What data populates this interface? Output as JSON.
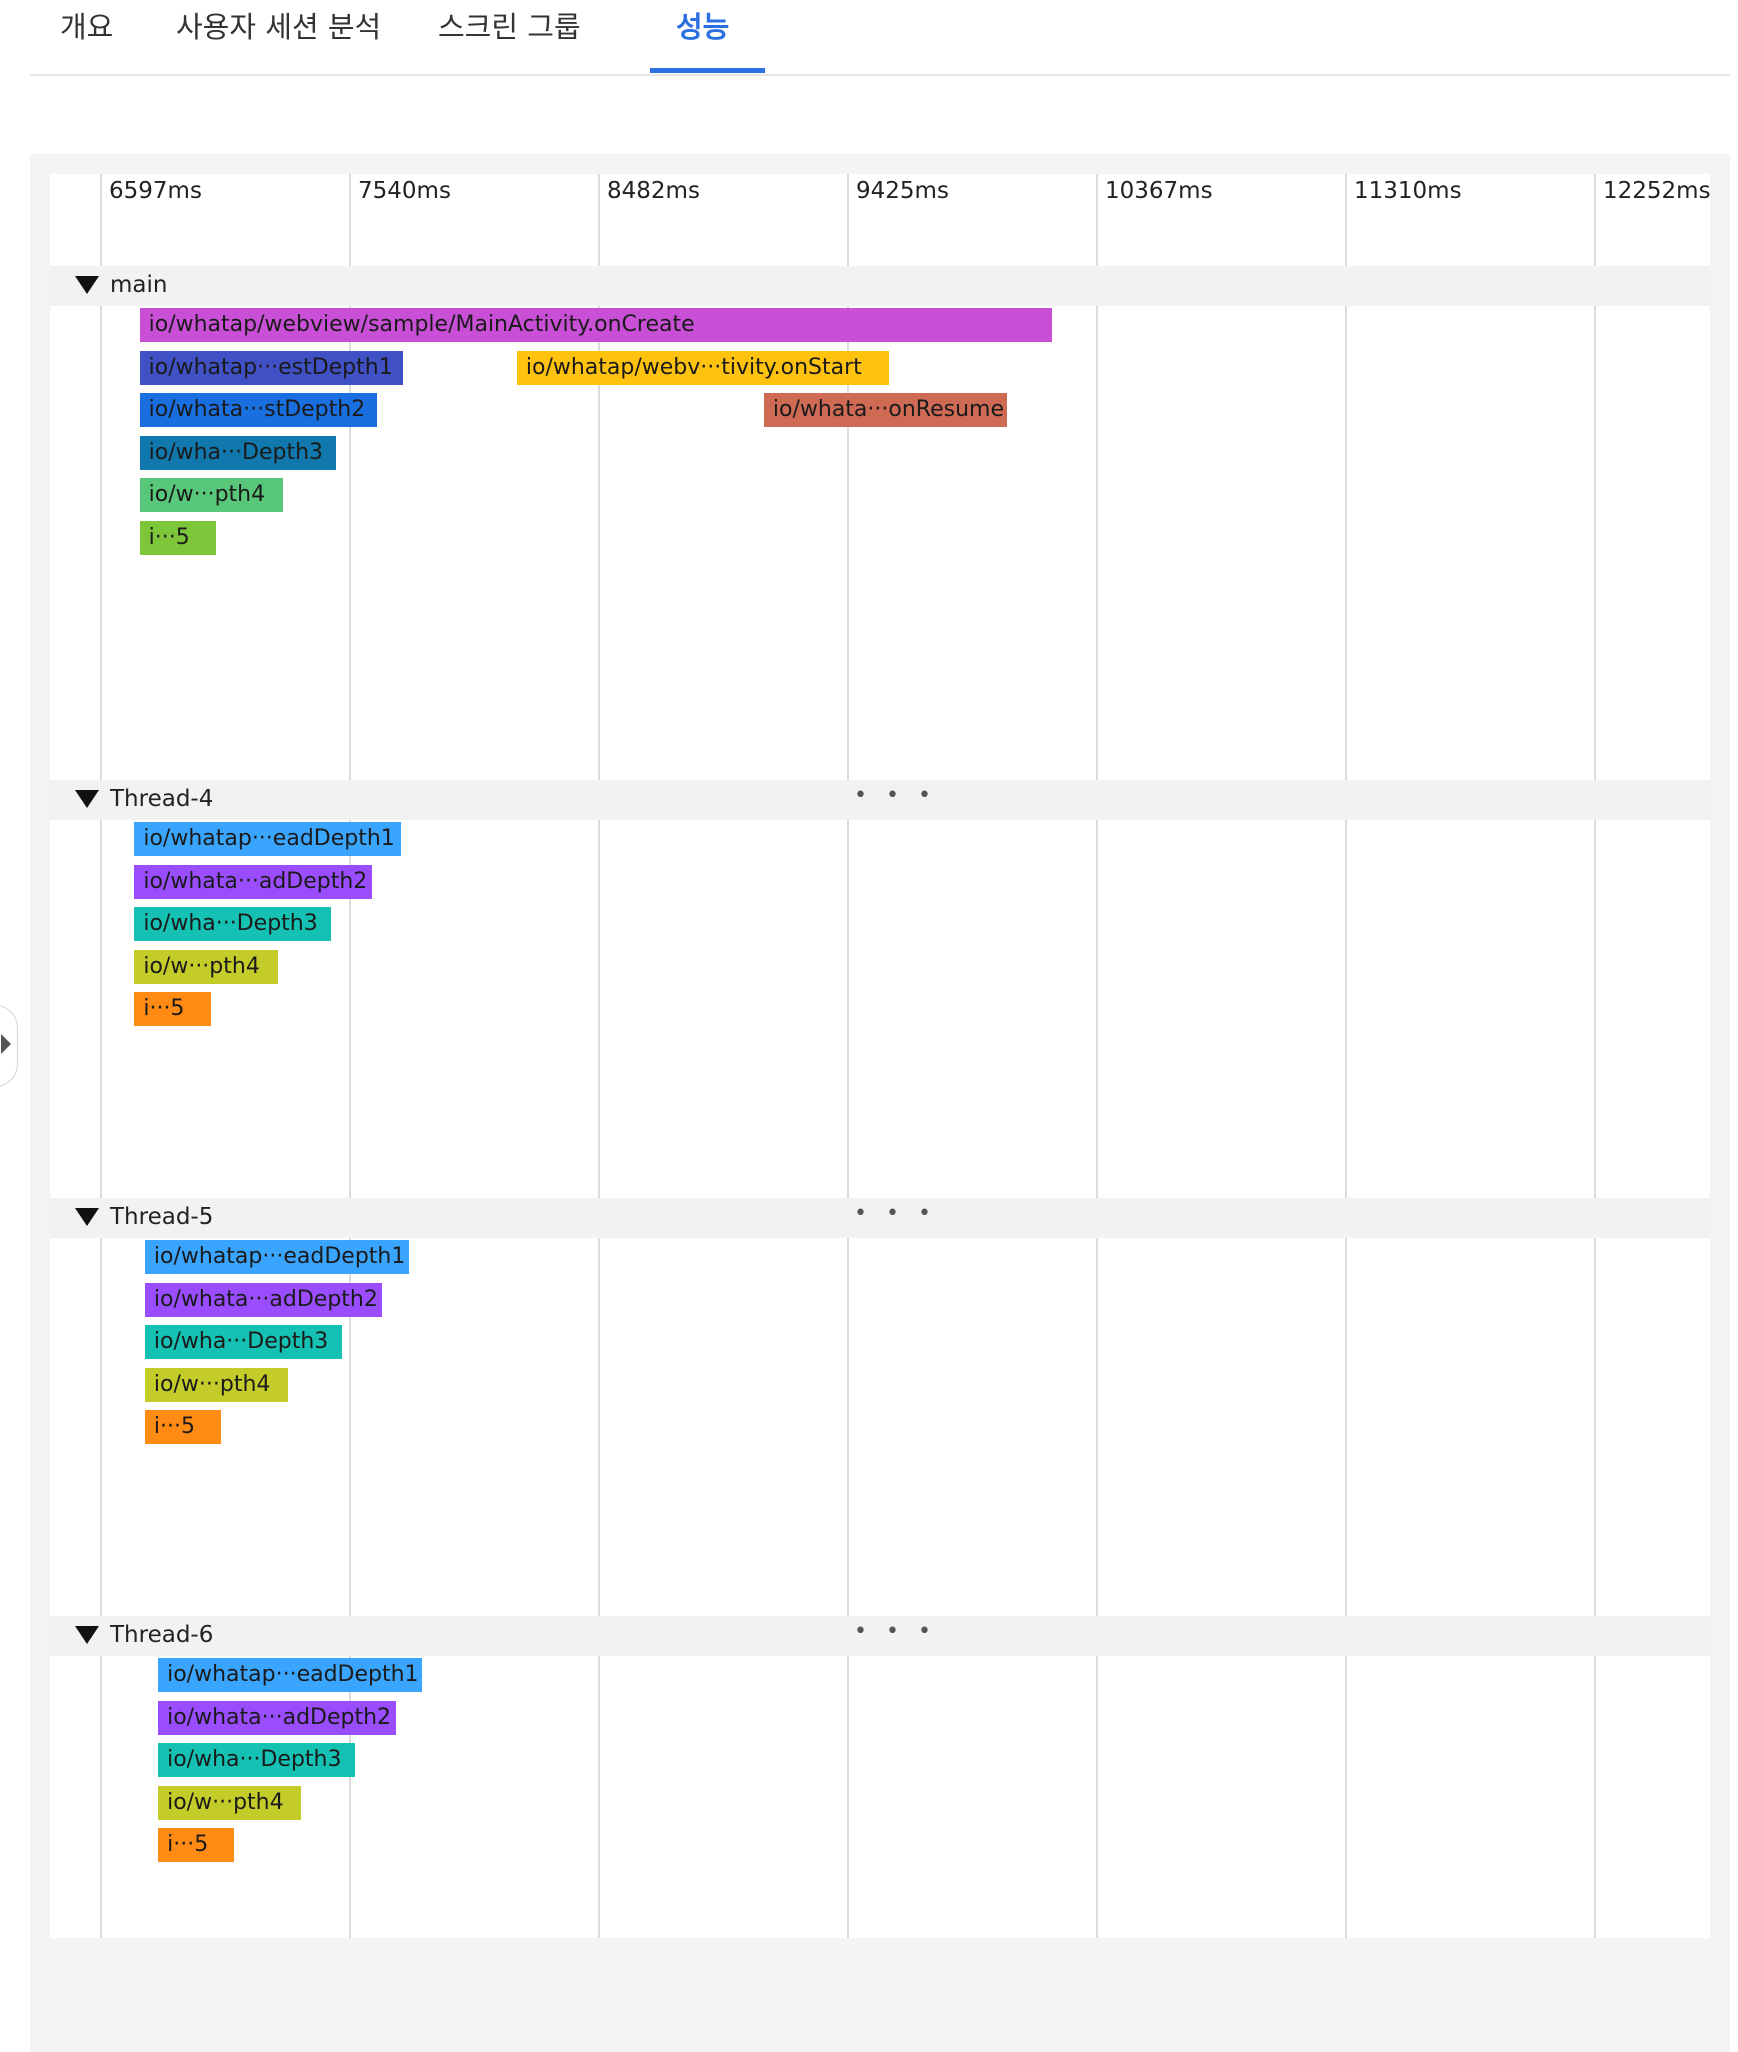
{
  "tabs": [
    {
      "label": "개요"
    },
    {
      "label": "사용자 세션 분석"
    },
    {
      "label": "스크린 그룹"
    },
    {
      "label": "성능"
    }
  ],
  "timeline": {
    "ticks": [
      "6597ms",
      "7540ms",
      "8482ms",
      "9425ms",
      "10367ms",
      "11310ms",
      "12252ms"
    ],
    "more_label": "• • •",
    "threads": [
      {
        "name": "main",
        "spans": [
          {
            "label": "io/whatap/webview/sample/MainActivity.onCreate",
            "start_ms": 6747,
            "end_ms": 10202,
            "depth": 0,
            "color": "#c94fd6"
          },
          {
            "label": "io/whatap···estDepth1",
            "start_ms": 6747,
            "end_ms": 7745,
            "depth": 1,
            "color": "#3f51c4"
          },
          {
            "label": "io/whatap/webv···tivity.onStart",
            "start_ms": 8175,
            "end_ms": 9585,
            "depth": 1,
            "color": "#ffc20e"
          },
          {
            "label": "io/whata···stDepth2",
            "start_ms": 6747,
            "end_ms": 7645,
            "depth": 2,
            "color": "#1a6fe0"
          },
          {
            "label": "io/whata···onResume",
            "start_ms": 9110,
            "end_ms": 10030,
            "depth": 2,
            "color": "#cf6b55"
          },
          {
            "label": "io/wha···Depth3",
            "start_ms": 6747,
            "end_ms": 7492,
            "depth": 3,
            "color": "#1178ad"
          },
          {
            "label": "io/w···pth4",
            "start_ms": 6747,
            "end_ms": 7289,
            "depth": 4,
            "color": "#58c779"
          },
          {
            "label": "i···5",
            "start_ms": 6747,
            "end_ms": 7036,
            "depth": 5,
            "color": "#7dc63a"
          }
        ]
      },
      {
        "name": "Thread-4",
        "spans": [
          {
            "label": "io/whatap···eadDepth1",
            "start_ms": 6727,
            "end_ms": 7735,
            "depth": 0,
            "color": "#3aa5ff"
          },
          {
            "label": "io/whata···adDepth2",
            "start_ms": 6727,
            "end_ms": 7626,
            "depth": 1,
            "color": "#9a4dff"
          },
          {
            "label": "io/wha···Depth3",
            "start_ms": 6727,
            "end_ms": 7472,
            "depth": 2,
            "color": "#14c1b3"
          },
          {
            "label": "io/w···pth4",
            "start_ms": 6727,
            "end_ms": 7269,
            "depth": 3,
            "color": "#c4cc2a"
          },
          {
            "label": "i···5",
            "start_ms": 6727,
            "end_ms": 7016,
            "depth": 4,
            "color": "#ff8a14"
          }
        ]
      },
      {
        "name": "Thread-5",
        "spans": [
          {
            "label": "io/whatap···eadDepth1",
            "start_ms": 6767,
            "end_ms": 7765,
            "depth": 0,
            "color": "#3aa5ff"
          },
          {
            "label": "io/whata···adDepth2",
            "start_ms": 6767,
            "end_ms": 7666,
            "depth": 1,
            "color": "#9a4dff"
          },
          {
            "label": "io/wha···Depth3",
            "start_ms": 6767,
            "end_ms": 7512,
            "depth": 2,
            "color": "#14c1b3"
          },
          {
            "label": "io/w···pth4",
            "start_ms": 6767,
            "end_ms": 7309,
            "depth": 3,
            "color": "#c4cc2a"
          },
          {
            "label": "i···5",
            "start_ms": 6767,
            "end_ms": 7056,
            "depth": 4,
            "color": "#ff8a14"
          }
        ]
      },
      {
        "name": "Thread-6",
        "spans": [
          {
            "label": "io/whatap···eadDepth1",
            "start_ms": 6817,
            "end_ms": 7815,
            "depth": 0,
            "color": "#3aa5ff"
          },
          {
            "label": "io/whata···adDepth2",
            "start_ms": 6817,
            "end_ms": 7716,
            "depth": 1,
            "color": "#9a4dff"
          },
          {
            "label": "io/wha···Depth3",
            "start_ms": 6817,
            "end_ms": 7562,
            "depth": 2,
            "color": "#14c1b3"
          },
          {
            "label": "io/w···pth4",
            "start_ms": 6817,
            "end_ms": 7359,
            "depth": 3,
            "color": "#c4cc2a"
          },
          {
            "label": "i···5",
            "start_ms": 6817,
            "end_ms": 7106,
            "depth": 4,
            "color": "#ff8a14"
          }
        ]
      }
    ]
  },
  "colors": {
    "accent": "#2b6fe0",
    "panel_bg": "#f4f4f4",
    "header_bg": "#f2f2f2",
    "gridline": "#dcdcdc"
  }
}
